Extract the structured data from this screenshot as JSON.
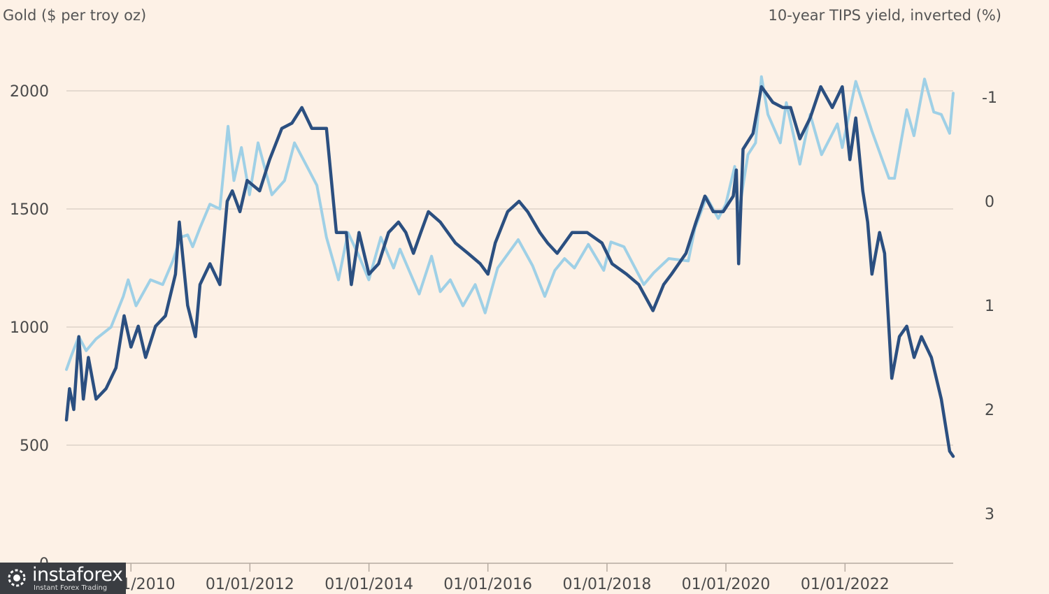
{
  "chart_data": {
    "type": "line",
    "left_axis_title": "Gold ($ per troy oz)",
    "right_axis_title": "10-year TIPS yield, inverted (%)",
    "left_ticks": [
      "0",
      "500",
      "1000",
      "1500",
      "2000"
    ],
    "right_ticks": [
      "-1",
      "0",
      "1",
      "2",
      "3"
    ],
    "x_ticks": [
      "01/01/2010",
      "01/01/2012",
      "01/01/2014",
      "01/01/2016",
      "01/01/2018",
      "01/01/2020",
      "01/01/2022"
    ],
    "left_ylim": [
      0,
      2200
    ],
    "right_ylim_inverted": [
      -1.35,
      3.5
    ],
    "grid": true,
    "series": [
      {
        "axis": "left",
        "color": "#9fd0e6",
        "points": [
          [
            "2008-12-01",
            820
          ],
          [
            "2009-01-01",
            880
          ],
          [
            "2009-02-15",
            960
          ],
          [
            "2009-04-01",
            900
          ],
          [
            "2009-06-01",
            950
          ],
          [
            "2009-09-01",
            1000
          ],
          [
            "2009-11-15",
            1130
          ],
          [
            "2009-12-15",
            1200
          ],
          [
            "2010-02-01",
            1090
          ],
          [
            "2010-05-01",
            1200
          ],
          [
            "2010-07-15",
            1180
          ],
          [
            "2010-09-15",
            1280
          ],
          [
            "2010-11-01",
            1380
          ],
          [
            "2010-12-15",
            1390
          ],
          [
            "2011-01-15",
            1340
          ],
          [
            "2011-03-01",
            1420
          ],
          [
            "2011-05-01",
            1520
          ],
          [
            "2011-07-01",
            1500
          ],
          [
            "2011-08-20",
            1850
          ],
          [
            "2011-09-25",
            1620
          ],
          [
            "2011-11-10",
            1760
          ],
          [
            "2011-12-30",
            1560
          ],
          [
            "2012-02-20",
            1780
          ],
          [
            "2012-05-15",
            1560
          ],
          [
            "2012-08-01",
            1620
          ],
          [
            "2012-10-01",
            1780
          ],
          [
            "2012-12-01",
            1700
          ],
          [
            "2013-02-15",
            1600
          ],
          [
            "2013-04-15",
            1380
          ],
          [
            "2013-06-28",
            1200
          ],
          [
            "2013-08-25",
            1400
          ],
          [
            "2013-11-01",
            1300
          ],
          [
            "2013-12-31",
            1200
          ],
          [
            "2014-03-15",
            1380
          ],
          [
            "2014-06-01",
            1250
          ],
          [
            "2014-07-10",
            1330
          ],
          [
            "2014-11-05",
            1140
          ],
          [
            "2015-01-20",
            1300
          ],
          [
            "2015-03-15",
            1150
          ],
          [
            "2015-05-15",
            1200
          ],
          [
            "2015-08-01",
            1090
          ],
          [
            "2015-10-15",
            1180
          ],
          [
            "2015-12-15",
            1060
          ],
          [
            "2016-03-01",
            1250
          ],
          [
            "2016-07-05",
            1370
          ],
          [
            "2016-10-01",
            1260
          ],
          [
            "2016-12-15",
            1130
          ],
          [
            "2017-02-15",
            1240
          ],
          [
            "2017-04-15",
            1290
          ],
          [
            "2017-06-15",
            1250
          ],
          [
            "2017-09-08",
            1350
          ],
          [
            "2017-12-12",
            1240
          ],
          [
            "2018-01-25",
            1360
          ],
          [
            "2018-04-15",
            1340
          ],
          [
            "2018-08-15",
            1180
          ],
          [
            "2018-10-15",
            1230
          ],
          [
            "2019-01-15",
            1290
          ],
          [
            "2019-05-15",
            1280
          ],
          [
            "2019-06-25",
            1420
          ],
          [
            "2019-09-04",
            1550
          ],
          [
            "2019-11-15",
            1460
          ],
          [
            "2019-12-31",
            1520
          ],
          [
            "2020-02-24",
            1680
          ],
          [
            "2020-03-19",
            1480
          ],
          [
            "2020-05-15",
            1730
          ],
          [
            "2020-07-01",
            1780
          ],
          [
            "2020-08-06",
            2060
          ],
          [
            "2020-09-15",
            1900
          ],
          [
            "2020-11-30",
            1780
          ],
          [
            "2021-01-06",
            1950
          ],
          [
            "2021-03-30",
            1690
          ],
          [
            "2021-06-01",
            1900
          ],
          [
            "2021-08-10",
            1730
          ],
          [
            "2021-11-15",
            1860
          ],
          [
            "2021-12-15",
            1760
          ],
          [
            "2022-03-08",
            2040
          ],
          [
            "2022-04-15",
            1960
          ],
          [
            "2022-06-15",
            1830
          ],
          [
            "2022-09-28",
            1630
          ],
          [
            "2022-11-01",
            1630
          ],
          [
            "2023-01-15",
            1920
          ],
          [
            "2023-02-28",
            1810
          ],
          [
            "2023-05-04",
            2050
          ],
          [
            "2023-06-30",
            1910
          ],
          [
            "2023-08-15",
            1900
          ],
          [
            "2023-10-05",
            1820
          ],
          [
            "2023-10-27",
            1990
          ]
        ]
      },
      {
        "axis": "right",
        "color": "#2b4f80",
        "points": [
          [
            "2008-12-01",
            2.1
          ],
          [
            "2008-12-20",
            1.8
          ],
          [
            "2009-01-15",
            2.0
          ],
          [
            "2009-02-15",
            1.3
          ],
          [
            "2009-03-15",
            1.9
          ],
          [
            "2009-04-15",
            1.5
          ],
          [
            "2009-06-01",
            1.9
          ],
          [
            "2009-08-01",
            1.8
          ],
          [
            "2009-10-01",
            1.6
          ],
          [
            "2009-11-20",
            1.1
          ],
          [
            "2010-01-01",
            1.4
          ],
          [
            "2010-02-15",
            1.2
          ],
          [
            "2010-04-01",
            1.5
          ],
          [
            "2010-06-01",
            1.2
          ],
          [
            "2010-08-01",
            1.1
          ],
          [
            "2010-10-01",
            0.7
          ],
          [
            "2010-10-25",
            0.2
          ],
          [
            "2010-12-15",
            1.0
          ],
          [
            "2011-02-01",
            1.3
          ],
          [
            "2011-03-01",
            0.8
          ],
          [
            "2011-05-01",
            0.6
          ],
          [
            "2011-07-01",
            0.8
          ],
          [
            "2011-08-15",
            0.0
          ],
          [
            "2011-09-15",
            -0.1
          ],
          [
            "2011-11-01",
            0.1
          ],
          [
            "2011-12-15",
            -0.2
          ],
          [
            "2012-03-01",
            -0.1
          ],
          [
            "2012-05-01",
            -0.4
          ],
          [
            "2012-07-15",
            -0.7
          ],
          [
            "2012-09-15",
            -0.75
          ],
          [
            "2012-11-15",
            -0.9
          ],
          [
            "2013-01-15",
            -0.7
          ],
          [
            "2013-04-15",
            -0.7
          ],
          [
            "2013-06-15",
            0.3
          ],
          [
            "2013-08-15",
            0.3
          ],
          [
            "2013-09-15",
            0.8
          ],
          [
            "2013-11-01",
            0.3
          ],
          [
            "2014-01-01",
            0.7
          ],
          [
            "2014-03-01",
            0.6
          ],
          [
            "2014-05-01",
            0.3
          ],
          [
            "2014-07-01",
            0.2
          ],
          [
            "2014-08-15",
            0.3
          ],
          [
            "2014-10-01",
            0.5
          ],
          [
            "2014-11-15",
            0.3
          ],
          [
            "2015-01-01",
            0.1
          ],
          [
            "2015-03-15",
            0.2
          ],
          [
            "2015-06-15",
            0.4
          ],
          [
            "2015-09-01",
            0.5
          ],
          [
            "2015-11-15",
            0.6
          ],
          [
            "2016-01-01",
            0.7
          ],
          [
            "2016-02-15",
            0.4
          ],
          [
            "2016-05-01",
            0.1
          ],
          [
            "2016-07-10",
            0.0
          ],
          [
            "2016-09-01",
            0.1
          ],
          [
            "2016-11-15",
            0.3
          ],
          [
            "2017-01-01",
            0.4
          ],
          [
            "2017-03-01",
            0.5
          ],
          [
            "2017-06-01",
            0.3
          ],
          [
            "2017-09-01",
            0.3
          ],
          [
            "2017-12-01",
            0.4
          ],
          [
            "2018-02-01",
            0.6
          ],
          [
            "2018-05-01",
            0.7
          ],
          [
            "2018-07-15",
            0.8
          ],
          [
            "2018-10-10",
            1.05
          ],
          [
            "2018-12-15",
            0.8
          ],
          [
            "2019-02-01",
            0.7
          ],
          [
            "2019-05-01",
            0.5
          ],
          [
            "2019-07-01",
            0.2
          ],
          [
            "2019-08-25",
            -0.05
          ],
          [
            "2019-10-15",
            0.1
          ],
          [
            "2019-12-15",
            0.1
          ],
          [
            "2020-02-15",
            -0.05
          ],
          [
            "2020-03-05",
            -0.3
          ],
          [
            "2020-03-19",
            0.6
          ],
          [
            "2020-04-15",
            -0.5
          ],
          [
            "2020-06-15",
            -0.65
          ],
          [
            "2020-08-06",
            -1.1
          ],
          [
            "2020-10-15",
            -0.95
          ],
          [
            "2020-12-15",
            -0.9
          ],
          [
            "2021-02-01",
            -0.9
          ],
          [
            "2021-03-30",
            -0.6
          ],
          [
            "2021-06-01",
            -0.8
          ],
          [
            "2021-08-05",
            -1.1
          ],
          [
            "2021-10-15",
            -0.9
          ],
          [
            "2021-12-15",
            -1.1
          ],
          [
            "2022-01-31",
            -0.4
          ],
          [
            "2022-03-08",
            -0.8
          ],
          [
            "2022-04-20",
            -0.1
          ],
          [
            "2022-05-20",
            0.2
          ],
          [
            "2022-06-15",
            0.7
          ],
          [
            "2022-08-01",
            0.3
          ],
          [
            "2022-09-01",
            0.5
          ],
          [
            "2022-10-15",
            1.7
          ],
          [
            "2022-12-01",
            1.3
          ],
          [
            "2023-01-15",
            1.2
          ],
          [
            "2023-03-01",
            1.5
          ],
          [
            "2023-04-15",
            1.3
          ],
          [
            "2023-06-15",
            1.5
          ],
          [
            "2023-08-15",
            1.9
          ],
          [
            "2023-10-05",
            2.4
          ],
          [
            "2023-10-27",
            2.45
          ]
        ]
      }
    ],
    "watermark": {
      "brand": "instaforex",
      "tagline": "Instant Forex Trading"
    }
  }
}
